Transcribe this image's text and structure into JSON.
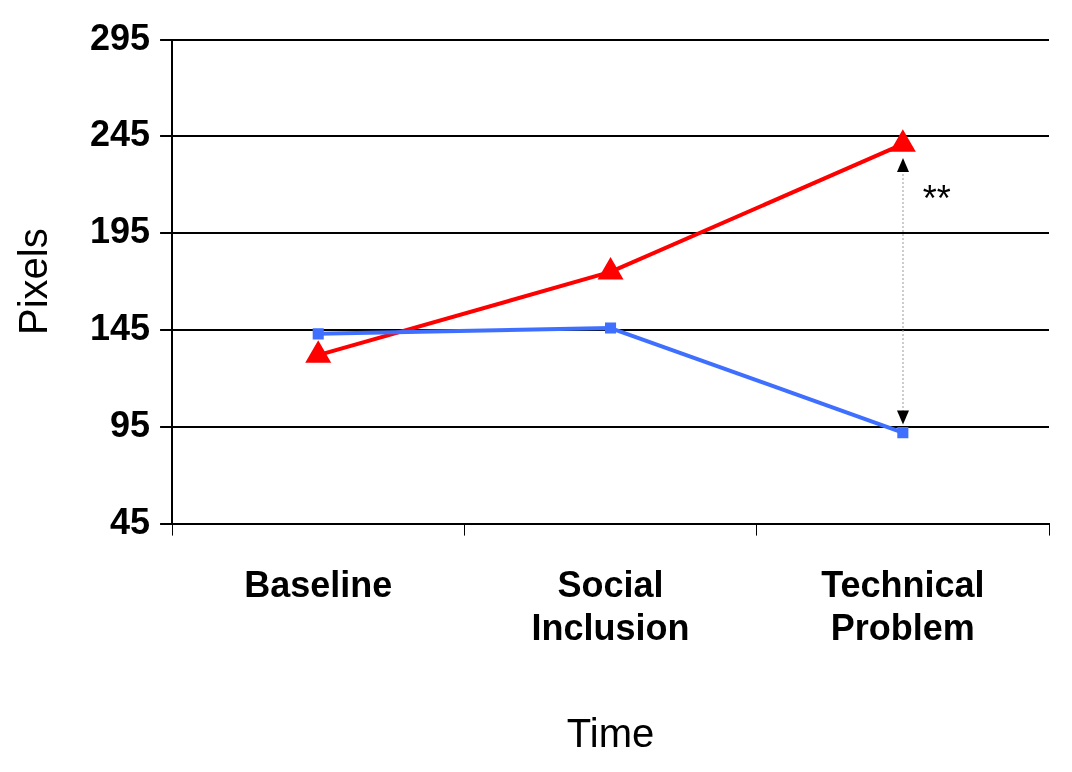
{
  "chart_data": {
    "type": "line",
    "xlabel": "Time",
    "ylabel": "Pixels",
    "categories": [
      "Baseline",
      "Social Inclusion",
      "Technical Problem"
    ],
    "series": [
      {
        "color": "#3f6fff",
        "marker": "square",
        "values": [
          143,
          146,
          92
        ]
      },
      {
        "color": "#ff0000",
        "marker": "triangle",
        "values": [
          132,
          175,
          241
        ]
      }
    ],
    "ylim": [
      45,
      295
    ],
    "yticks": [
      45,
      95,
      145,
      195,
      245,
      295
    ],
    "grid": "y",
    "legend": false,
    "line_style": "solid",
    "annotations": [
      "**"
    ]
  }
}
